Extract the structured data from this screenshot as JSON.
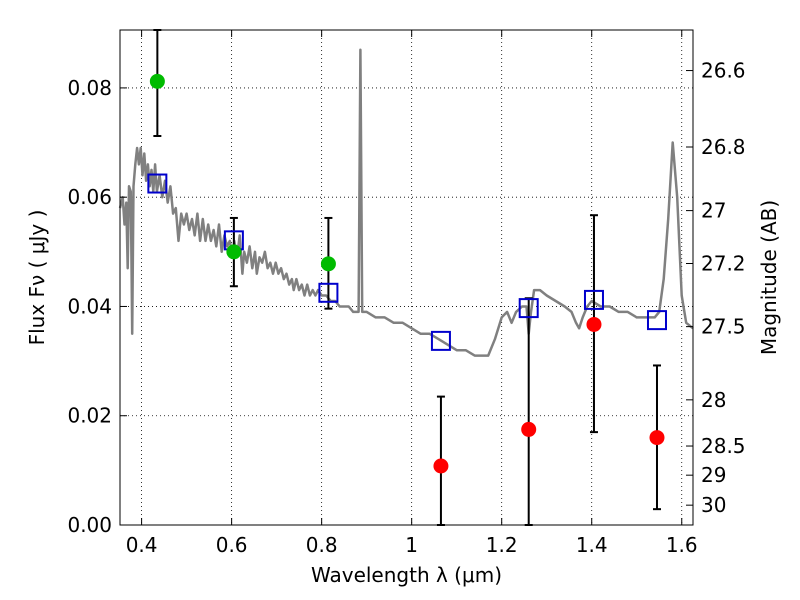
{
  "chart_data": {
    "type": "scatter",
    "xlabel": "Wavelength  λ (μm)",
    "ylabel": "Flux  Fν  ( μJy )",
    "ylabel_right": "Magnitude (AB)",
    "xlim": [
      0.352,
      1.625
    ],
    "ylim": [
      0.0,
      0.0906
    ],
    "grid": true,
    "x_ticks": [
      {
        "value": 0.4,
        "label": "0.4"
      },
      {
        "value": 0.6,
        "label": "0.6"
      },
      {
        "value": 0.8,
        "label": "0.8"
      },
      {
        "value": 1.0,
        "label": "1"
      },
      {
        "value": 1.2,
        "label": "1.2"
      },
      {
        "value": 1.4,
        "label": "1.4"
      },
      {
        "value": 1.6,
        "label": "1.6"
      }
    ],
    "y_ticks": [
      {
        "value": 0.0,
        "label": "0.00"
      },
      {
        "value": 0.02,
        "label": "0.02"
      },
      {
        "value": 0.04,
        "label": "0.04"
      },
      {
        "value": 0.06,
        "label": "0.06"
      },
      {
        "value": 0.08,
        "label": "0.08"
      }
    ],
    "right_ticks": [
      {
        "mag": 26.6,
        "label": "26.6"
      },
      {
        "mag": 26.8,
        "label": "26.8"
      },
      {
        "mag": 27.0,
        "label": "27"
      },
      {
        "mag": 27.2,
        "label": "27.2"
      },
      {
        "mag": 27.5,
        "label": "27.5"
      },
      {
        "mag": 28.0,
        "label": "28"
      },
      {
        "mag": 28.5,
        "label": "28.5"
      },
      {
        "mag": 29.0,
        "label": "29"
      },
      {
        "mag": 30.0,
        "label": "30"
      }
    ],
    "colors": {
      "model": "#808080",
      "green": "#00bb00",
      "red": "#ff0000",
      "box": "#0000cc",
      "errorbar": "#000000"
    },
    "model_spectrum": [
      [
        0.352,
        0.058
      ],
      [
        0.358,
        0.06
      ],
      [
        0.362,
        0.055
      ],
      [
        0.366,
        0.059
      ],
      [
        0.369,
        0.047
      ],
      [
        0.372,
        0.062
      ],
      [
        0.376,
        0.061
      ],
      [
        0.379,
        0.035
      ],
      [
        0.382,
        0.062
      ],
      [
        0.386,
        0.066
      ],
      [
        0.39,
        0.069
      ],
      [
        0.394,
        0.066
      ],
      [
        0.398,
        0.069
      ],
      [
        0.402,
        0.064
      ],
      [
        0.406,
        0.068
      ],
      [
        0.41,
        0.063
      ],
      [
        0.414,
        0.066
      ],
      [
        0.418,
        0.062
      ],
      [
        0.422,
        0.065
      ],
      [
        0.426,
        0.061
      ],
      [
        0.43,
        0.066
      ],
      [
        0.434,
        0.061
      ],
      [
        0.44,
        0.064
      ],
      [
        0.446,
        0.06
      ],
      [
        0.452,
        0.063
      ],
      [
        0.458,
        0.059
      ],
      [
        0.464,
        0.062
      ],
      [
        0.47,
        0.057
      ],
      [
        0.476,
        0.058
      ],
      [
        0.482,
        0.052
      ],
      [
        0.488,
        0.057
      ],
      [
        0.494,
        0.055
      ],
      [
        0.5,
        0.057
      ],
      [
        0.506,
        0.054
      ],
      [
        0.512,
        0.056
      ],
      [
        0.518,
        0.053
      ],
      [
        0.524,
        0.057
      ],
      [
        0.53,
        0.052
      ],
      [
        0.536,
        0.056
      ],
      [
        0.542,
        0.052
      ],
      [
        0.548,
        0.055
      ],
      [
        0.554,
        0.052
      ],
      [
        0.56,
        0.054
      ],
      [
        0.566,
        0.051
      ],
      [
        0.572,
        0.055
      ],
      [
        0.578,
        0.05
      ],
      [
        0.584,
        0.053
      ],
      [
        0.59,
        0.051
      ],
      [
        0.596,
        0.052
      ],
      [
        0.602,
        0.049
      ],
      [
        0.606,
        0.052
      ],
      [
        0.612,
        0.049
      ],
      [
        0.618,
        0.053
      ],
      [
        0.624,
        0.046
      ],
      [
        0.628,
        0.05
      ],
      [
        0.634,
        0.048
      ],
      [
        0.64,
        0.051
      ],
      [
        0.646,
        0.047
      ],
      [
        0.652,
        0.05
      ],
      [
        0.656,
        0.046
      ],
      [
        0.662,
        0.049
      ],
      [
        0.668,
        0.048
      ],
      [
        0.674,
        0.05
      ],
      [
        0.68,
        0.047
      ],
      [
        0.686,
        0.048
      ],
      [
        0.692,
        0.046
      ],
      [
        0.698,
        0.048
      ],
      [
        0.704,
        0.046
      ],
      [
        0.71,
        0.047
      ],
      [
        0.716,
        0.045
      ],
      [
        0.722,
        0.046
      ],
      [
        0.728,
        0.044
      ],
      [
        0.734,
        0.045
      ],
      [
        0.738,
        0.043
      ],
      [
        0.744,
        0.045
      ],
      [
        0.75,
        0.043
      ],
      [
        0.756,
        0.044
      ],
      [
        0.762,
        0.042
      ],
      [
        0.768,
        0.044
      ],
      [
        0.774,
        0.042
      ],
      [
        0.78,
        0.043
      ],
      [
        0.786,
        0.042
      ],
      [
        0.792,
        0.043
      ],
      [
        0.8,
        0.042
      ],
      [
        0.81,
        0.042
      ],
      [
        0.82,
        0.041
      ],
      [
        0.83,
        0.041
      ],
      [
        0.84,
        0.04
      ],
      [
        0.85,
        0.04
      ],
      [
        0.86,
        0.04
      ],
      [
        0.87,
        0.039
      ],
      [
        0.882,
        0.039
      ],
      [
        0.886,
        0.087
      ],
      [
        0.89,
        0.039
      ],
      [
        0.9,
        0.039
      ],
      [
        0.92,
        0.038
      ],
      [
        0.94,
        0.038
      ],
      [
        0.96,
        0.037
      ],
      [
        0.98,
        0.037
      ],
      [
        1.0,
        0.036
      ],
      [
        1.02,
        0.035
      ],
      [
        1.04,
        0.035
      ],
      [
        1.06,
        0.034
      ],
      [
        1.08,
        0.033
      ],
      [
        1.1,
        0.032
      ],
      [
        1.12,
        0.032
      ],
      [
        1.14,
        0.031
      ],
      [
        1.16,
        0.031
      ],
      [
        1.17,
        0.031
      ],
      [
        1.185,
        0.034
      ],
      [
        1.2,
        0.038
      ],
      [
        1.212,
        0.039
      ],
      [
        1.222,
        0.037
      ],
      [
        1.232,
        0.039
      ],
      [
        1.245,
        0.04
      ],
      [
        1.255,
        0.04
      ],
      [
        1.26,
        0.035
      ],
      [
        1.265,
        0.039
      ],
      [
        1.272,
        0.043
      ],
      [
        1.285,
        0.043
      ],
      [
        1.3,
        0.042
      ],
      [
        1.32,
        0.041
      ],
      [
        1.34,
        0.04
      ],
      [
        1.355,
        0.039
      ],
      [
        1.365,
        0.037
      ],
      [
        1.372,
        0.036
      ],
      [
        1.38,
        0.038
      ],
      [
        1.39,
        0.04
      ],
      [
        1.4,
        0.041
      ],
      [
        1.42,
        0.04
      ],
      [
        1.44,
        0.04
      ],
      [
        1.46,
        0.039
      ],
      [
        1.48,
        0.039
      ],
      [
        1.5,
        0.038
      ],
      [
        1.52,
        0.038
      ],
      [
        1.54,
        0.038
      ],
      [
        1.55,
        0.039
      ],
      [
        1.56,
        0.045
      ],
      [
        1.57,
        0.056
      ],
      [
        1.58,
        0.07
      ],
      [
        1.59,
        0.06
      ],
      [
        1.6,
        0.042
      ],
      [
        1.61,
        0.037
      ],
      [
        1.625,
        0.036
      ]
    ],
    "green_points": [
      {
        "x": 0.435,
        "y": 0.0812,
        "err_lo": 0.0712,
        "err_hi": 0.0906
      },
      {
        "x": 0.605,
        "y": 0.05,
        "err_lo": 0.0437,
        "err_hi": 0.0562
      },
      {
        "x": 0.815,
        "y": 0.0478,
        "err_lo": 0.0396,
        "err_hi": 0.0562
      }
    ],
    "red_points": [
      {
        "x": 1.065,
        "y": 0.0108,
        "err_lo": 0.0,
        "err_hi": 0.0235
      },
      {
        "x": 1.26,
        "y": 0.0175,
        "err_lo": 0.0,
        "err_hi": 0.0415
      },
      {
        "x": 1.405,
        "y": 0.0367,
        "err_lo": 0.017,
        "err_hi": 0.0567
      },
      {
        "x": 1.545,
        "y": 0.016,
        "err_lo": 0.0029,
        "err_hi": 0.0292
      }
    ],
    "model_boxes": [
      {
        "x": 0.435,
        "y": 0.0625
      },
      {
        "x": 0.605,
        "y": 0.0521
      },
      {
        "x": 0.815,
        "y": 0.0425
      },
      {
        "x": 1.065,
        "y": 0.0337
      },
      {
        "x": 1.26,
        "y": 0.0397
      },
      {
        "x": 1.405,
        "y": 0.0412
      },
      {
        "x": 1.545,
        "y": 0.0375
      }
    ]
  }
}
